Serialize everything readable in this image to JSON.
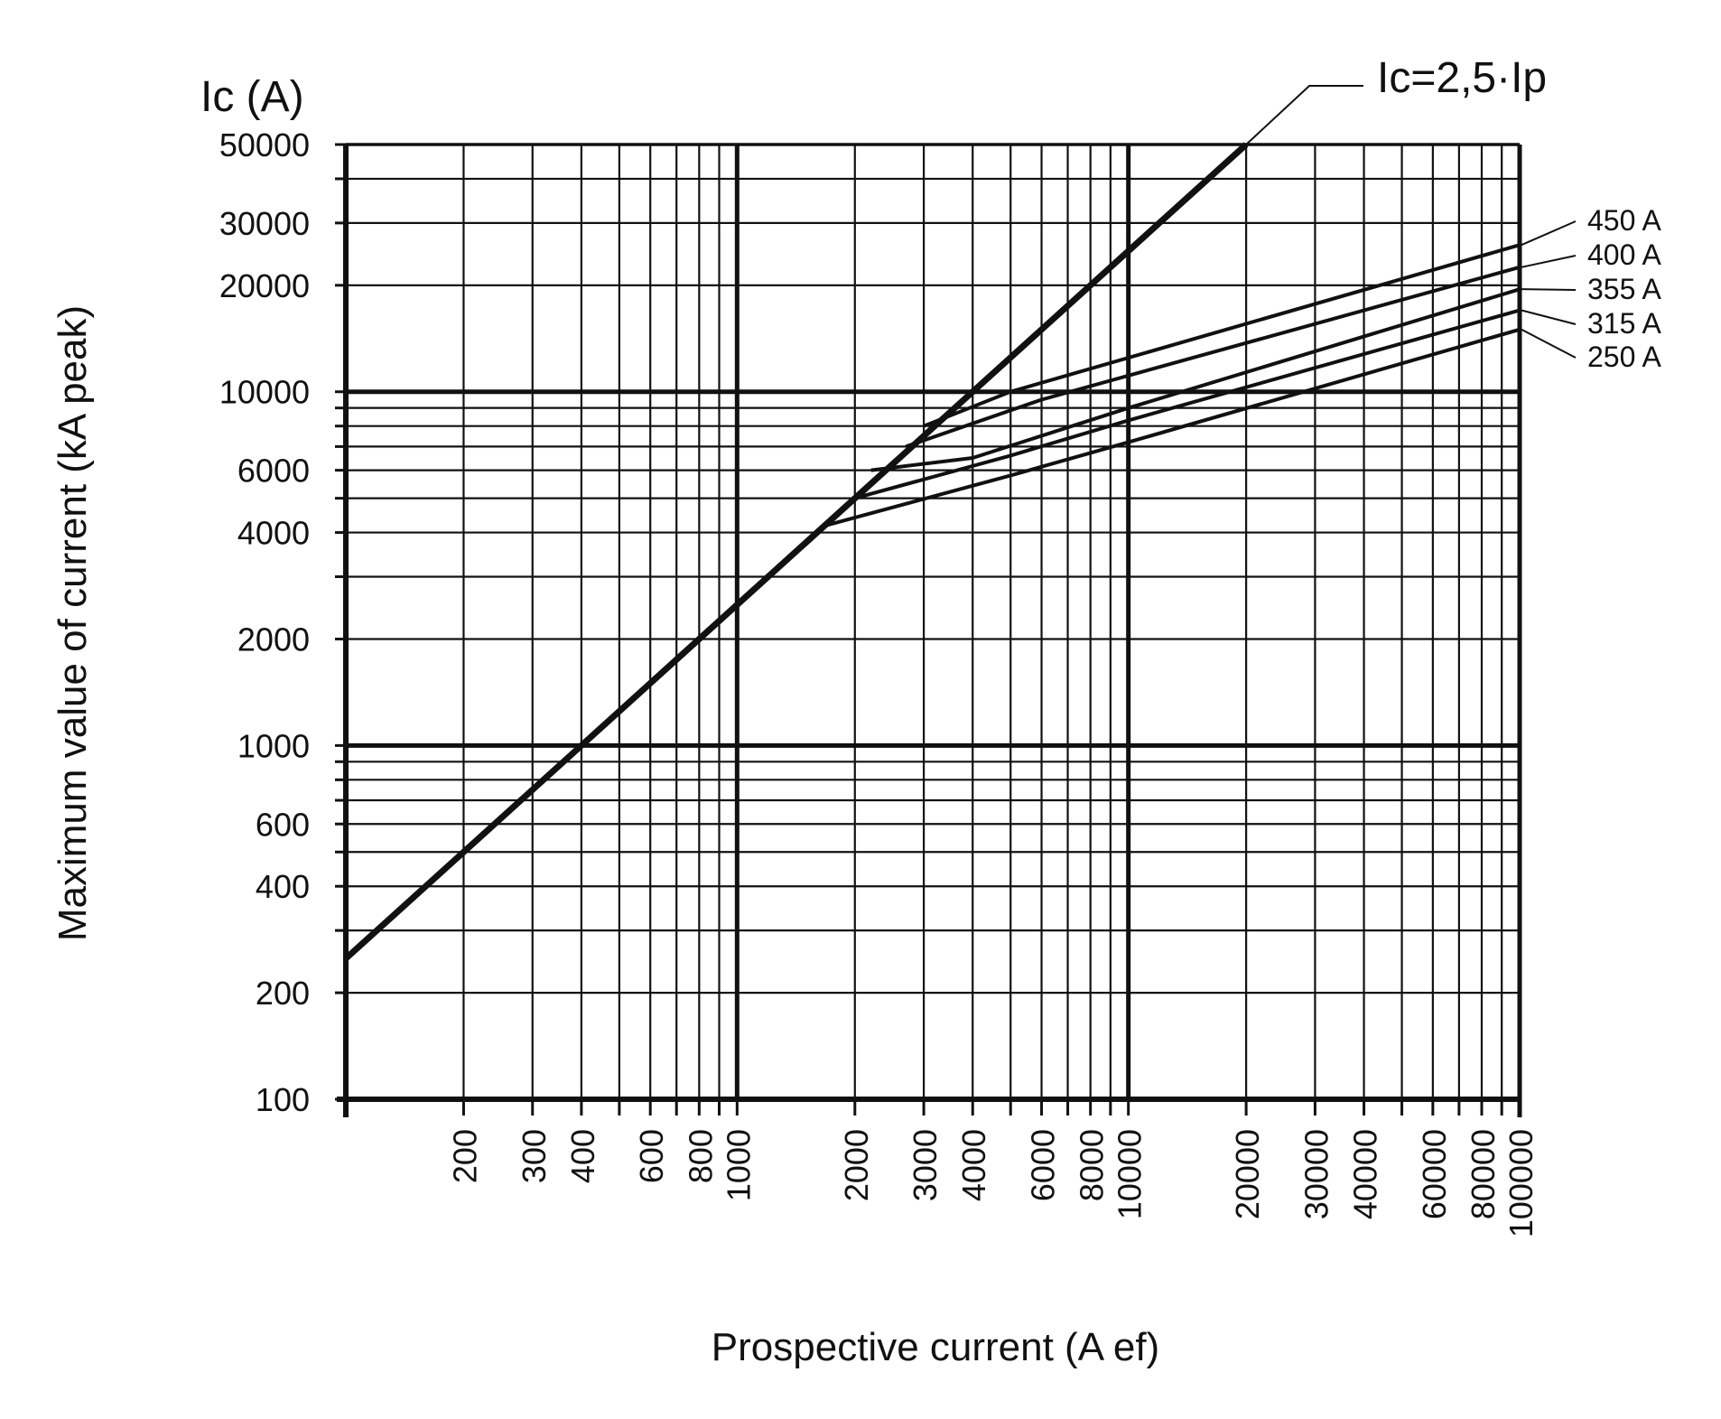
{
  "chart_data": {
    "type": "line",
    "x_scale": "log",
    "y_scale": "log",
    "xlim": [
      100,
      100000
    ],
    "ylim": [
      100,
      50000
    ],
    "grid": true,
    "xlabel": "Prospective current (A ef)",
    "ylabel": "Maximum value of current (kA peak)",
    "y_unit_label": "Ic (A)",
    "x_tick_labels": [
      "200",
      "300",
      "400",
      "600",
      "800",
      "1000",
      "2000",
      "3000",
      "4000",
      "6000",
      "8000",
      "10000",
      "20000",
      "30000",
      "40000",
      "60000",
      "80000",
      "100000"
    ],
    "y_tick_labels": [
      "50000",
      "30000",
      "20000",
      "10000",
      "6000",
      "4000",
      "2000",
      "1000",
      "600",
      "400",
      "200",
      "100"
    ],
    "series": [
      {
        "name": "Ic=2,5·Ip",
        "points": [
          [
            100,
            250
          ],
          [
            20000,
            50000
          ]
        ]
      },
      {
        "name": "450 A",
        "points": [
          [
            3000,
            8000
          ],
          [
            5000,
            10000
          ],
          [
            100000,
            26000
          ]
        ]
      },
      {
        "name": "400 A",
        "points": [
          [
            2700,
            7000
          ],
          [
            6000,
            9500
          ],
          [
            100000,
            22500
          ]
        ]
      },
      {
        "name": "355 A",
        "points": [
          [
            2200,
            6000
          ],
          [
            4000,
            6500
          ],
          [
            10000,
            9000
          ],
          [
            100000,
            19500
          ]
        ]
      },
      {
        "name": "315 A",
        "points": [
          [
            2000,
            5000
          ],
          [
            5000,
            6600
          ],
          [
            10000,
            8300
          ],
          [
            100000,
            17000
          ]
        ]
      },
      {
        "name": "250 A",
        "points": [
          [
            1700,
            4200
          ],
          [
            5000,
            5800
          ],
          [
            10000,
            7200
          ],
          [
            100000,
            15000
          ]
        ]
      }
    ]
  }
}
